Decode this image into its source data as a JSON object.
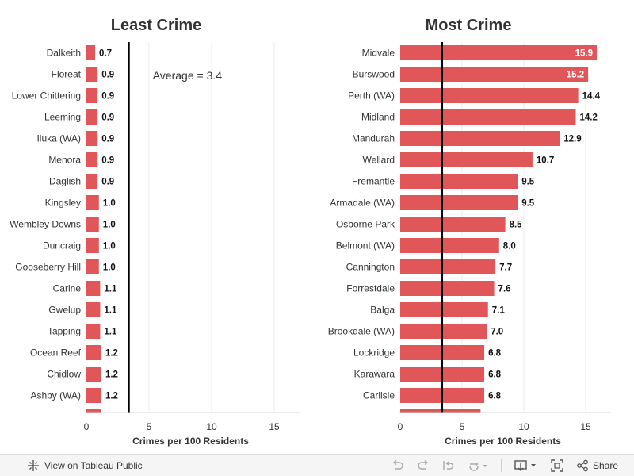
{
  "colors": {
    "bar": "#e15759",
    "text": "#333333",
    "grid": "#eeeeee",
    "avg_line": "#000000",
    "inside_label": "#ffffff"
  },
  "chart_data": [
    {
      "type": "bar",
      "orientation": "horizontal",
      "title": "Least Crime",
      "xlabel": "Crimes per 100 Residents",
      "xlim": [
        0,
        16
      ],
      "xticks": [
        0,
        5,
        10,
        15
      ],
      "reference_line": {
        "value": 3.4,
        "label": "Average = 3.4"
      },
      "categories": [
        "Dalkeith",
        "Floreat",
        "Lower Chittering",
        "Leeming",
        "Iluka (WA)",
        "Menora",
        "Daglish",
        "Kingsley",
        "Wembley Downs",
        "Duncraig",
        "Gooseberry Hill",
        "Carine",
        "Gwelup",
        "Tapping",
        "Ocean Reef",
        "Chidlow",
        "Ashby (WA)"
      ],
      "values": [
        0.7,
        0.9,
        0.9,
        0.9,
        0.9,
        0.9,
        0.9,
        1.0,
        1.0,
        1.0,
        1.0,
        1.1,
        1.1,
        1.1,
        1.2,
        1.2,
        1.2
      ],
      "value_labels": [
        "0.7",
        "0.9",
        "0.9",
        "0.9",
        "0.9",
        "0.9",
        "0.9",
        "1.0",
        "1.0",
        "1.0",
        "1.0",
        "1.1",
        "1.1",
        "1.1",
        "1.2",
        "1.2",
        "1.2"
      ],
      "partial_next_value": 1.2
    },
    {
      "type": "bar",
      "orientation": "horizontal",
      "title": "Most Crime",
      "xlabel": "Crimes per 100 Residents",
      "xlim": [
        0,
        16
      ],
      "xticks": [
        0,
        5,
        10,
        15
      ],
      "reference_line": {
        "value": 3.4,
        "label": ""
      },
      "categories": [
        "Midvale",
        "Burswood",
        "Perth (WA)",
        "Midland",
        "Mandurah",
        "Wellard",
        "Fremantle",
        "Armadale (WA)",
        "Osborne Park",
        "Belmont (WA)",
        "Cannington",
        "Forrestdale",
        "Balga",
        "Brookdale (WA)",
        "Lockridge",
        "Karawara",
        "Carlisle"
      ],
      "values": [
        15.9,
        15.2,
        14.4,
        14.2,
        12.9,
        10.7,
        9.5,
        9.5,
        8.5,
        8.0,
        7.7,
        7.6,
        7.1,
        7.0,
        6.8,
        6.8,
        6.8
      ],
      "value_labels": [
        "15.9",
        "15.2",
        "14.4",
        "14.2",
        "12.9",
        "10.7",
        "9.5",
        "9.5",
        "8.5",
        "8.0",
        "7.7",
        "7.6",
        "7.1",
        "7.0",
        "6.8",
        "6.8",
        "6.8"
      ],
      "labels_inside_count": 2,
      "partial_next_value": 6.5
    }
  ],
  "toolbar": {
    "view_label": "View on Tableau Public",
    "share_label": "Share"
  }
}
